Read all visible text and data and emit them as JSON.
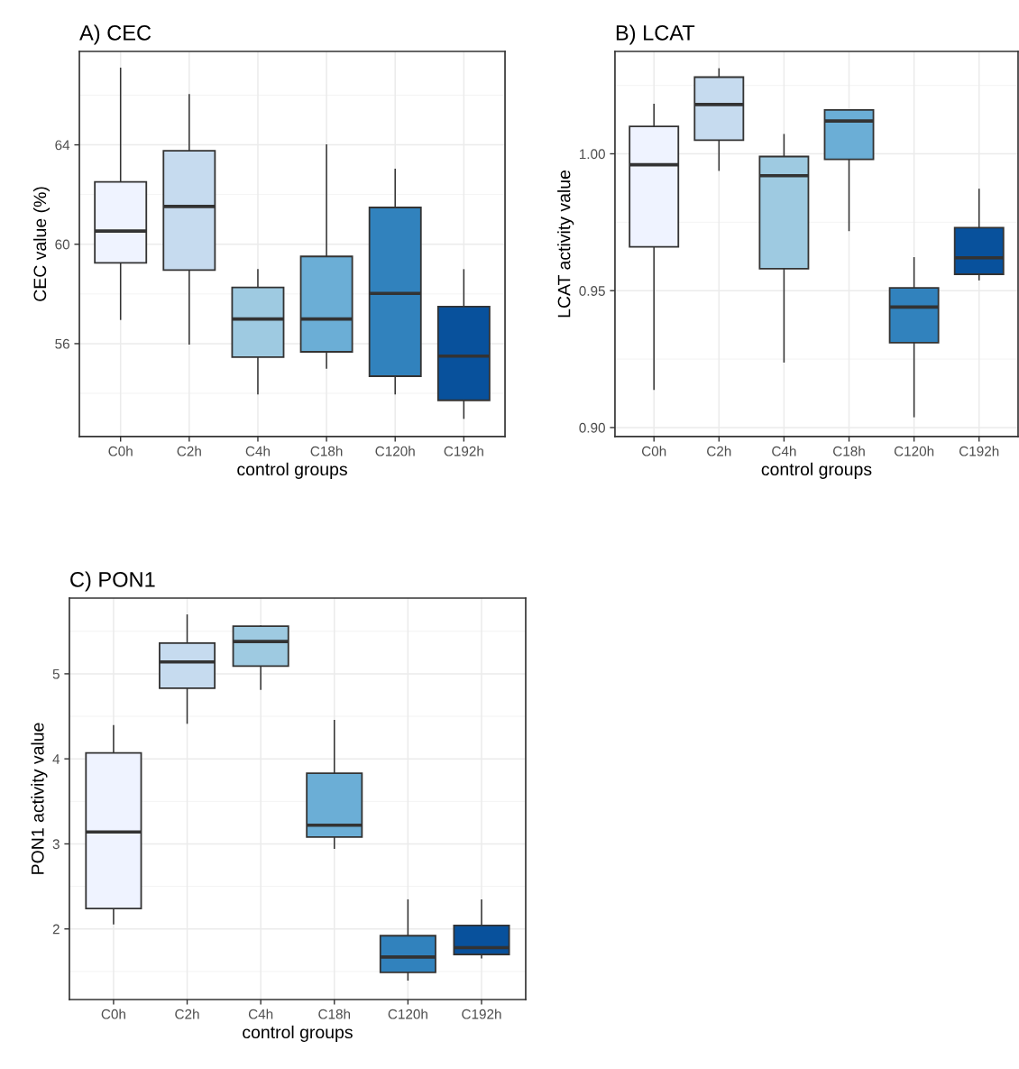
{
  "chart_data": [
    {
      "type": "box",
      "title": "A) CEC",
      "xlabel": "control groups",
      "ylabel": "CEC value (%)",
      "categories": [
        "C0h",
        "C2h",
        "C4h",
        "C18h",
        "C120h",
        "C192h"
      ],
      "colors": [
        "#eff3ff",
        "#c6dbef",
        "#9ecae1",
        "#6baed6",
        "#3182bd",
        "#08519c"
      ],
      "ylim": [
        52.26,
        67.76
      ],
      "yticks": [
        56,
        60,
        64
      ],
      "grid": true,
      "boxes": [
        {
          "low": 56.98,
          "q1": 59.25,
          "median": 60.53,
          "q3": 62.51,
          "high": 67.08
        },
        {
          "low": 55.99,
          "q1": 58.96,
          "median": 61.52,
          "q3": 63.76,
          "high": 66.02
        },
        {
          "low": 53.98,
          "q1": 55.46,
          "median": 56.99,
          "q3": 58.26,
          "high": 58.97
        },
        {
          "low": 55.02,
          "q1": 55.67,
          "median": 56.99,
          "q3": 59.51,
          "high": 63.99
        },
        {
          "low": 53.98,
          "q1": 54.69,
          "median": 58.02,
          "q3": 61.48,
          "high": 63.01
        },
        {
          "low": 53.0,
          "q1": 53.72,
          "median": 55.5,
          "q3": 57.49,
          "high": 58.97
        }
      ]
    },
    {
      "type": "box",
      "title": "B) LCAT",
      "xlabel": "control groups",
      "ylabel": "LCAT activity value",
      "categories": [
        "C0h",
        "C2h",
        "C4h",
        "C18h",
        "C120h",
        "C192h"
      ],
      "colors": [
        "#eff3ff",
        "#c6dbef",
        "#9ecae1",
        "#6baed6",
        "#3182bd",
        "#08519c"
      ],
      "ylim": [
        0.8967,
        1.0374
      ],
      "yticks": [
        {
          "value": 0.9,
          "label": "0.90"
        },
        {
          "value": 0.95,
          "label": "0.95"
        },
        {
          "value": 1.0,
          "label": "1.00"
        }
      ],
      "grid": true,
      "boxes": [
        {
          "low": 0.914,
          "q1": 0.966,
          "median": 0.996,
          "q3": 1.01,
          "high": 1.018
        },
        {
          "low": 0.994,
          "q1": 1.005,
          "median": 1.018,
          "q3": 1.028,
          "high": 1.031
        },
        {
          "low": 0.924,
          "q1": 0.958,
          "median": 0.992,
          "q3": 0.999,
          "high": 1.007
        },
        {
          "low": 0.972,
          "q1": 0.998,
          "median": 1.012,
          "q3": 1.016,
          "high": 1.016
        },
        {
          "low": 0.904,
          "q1": 0.931,
          "median": 0.944,
          "q3": 0.951,
          "high": 0.962
        },
        {
          "low": 0.954,
          "q1": 0.956,
          "median": 0.962,
          "q3": 0.973,
          "high": 0.987
        }
      ]
    },
    {
      "type": "box",
      "title": "C) PON1",
      "xlabel": "control groups",
      "ylabel": "PON1 activity value",
      "categories": [
        "C0h",
        "C2h",
        "C4h",
        "C18h",
        "C120h",
        "C192h"
      ],
      "colors": [
        "#eff3ff",
        "#c6dbef",
        "#9ecae1",
        "#6baed6",
        "#3182bd",
        "#08519c"
      ],
      "ylim": [
        1.17,
        5.89
      ],
      "yticks": [
        2,
        3,
        4,
        5
      ],
      "grid": true,
      "boxes": [
        {
          "low": 2.06,
          "q1": 2.24,
          "median": 3.14,
          "q3": 4.07,
          "high": 4.39
        },
        {
          "low": 4.42,
          "q1": 4.83,
          "median": 5.14,
          "q3": 5.36,
          "high": 5.69
        },
        {
          "low": 4.82,
          "q1": 5.09,
          "median": 5.38,
          "q3": 5.56,
          "high": 5.56
        },
        {
          "low": 2.95,
          "q1": 3.08,
          "median": 3.22,
          "q3": 3.83,
          "high": 4.45
        },
        {
          "low": 1.4,
          "q1": 1.49,
          "median": 1.67,
          "q3": 1.92,
          "high": 2.34
        },
        {
          "low": 1.66,
          "q1": 1.7,
          "median": 1.78,
          "q3": 2.04,
          "high": 2.34
        }
      ]
    }
  ]
}
